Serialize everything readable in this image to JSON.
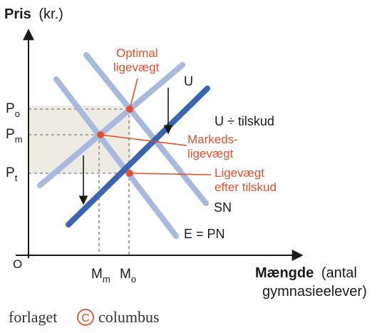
{
  "colors": {
    "axis": "#1a1a1a",
    "light_curve": "#a8b9e0",
    "dark_curve": "#3a65b0",
    "highlight": "#e2502a",
    "band": "#eeebe3",
    "dashed": "#8f8f8f"
  },
  "y_axis": {
    "title_bold": "Pris",
    "title_rest": "(kr.)"
  },
  "x_axis": {
    "title_bold": "Mængde",
    "title_rest_line1": "(antal",
    "title_rest_line2": "gymnasieelever)"
  },
  "origin": "O",
  "price_levels": [
    {
      "base": "P",
      "sub": "o"
    },
    {
      "base": "P",
      "sub": "m"
    },
    {
      "base": "P",
      "sub": "t"
    }
  ],
  "quantity_levels": [
    {
      "base": "M",
      "sub": "m"
    },
    {
      "base": "M",
      "sub": "o"
    }
  ],
  "curves": {
    "u": "U",
    "u_subsidy": "U ÷ tilskud",
    "sn": "SN",
    "e_pn": "E = PN"
  },
  "annotations": {
    "optimal": [
      "Optimal",
      "ligevægt"
    ],
    "market": [
      "Markeds-",
      "ligevægt"
    ],
    "after_subsidy": [
      "Ligevægt",
      "efter tilskud"
    ]
  },
  "footer": {
    "left": "forlaget",
    "symbol": "C",
    "right": "columbus"
  }
}
